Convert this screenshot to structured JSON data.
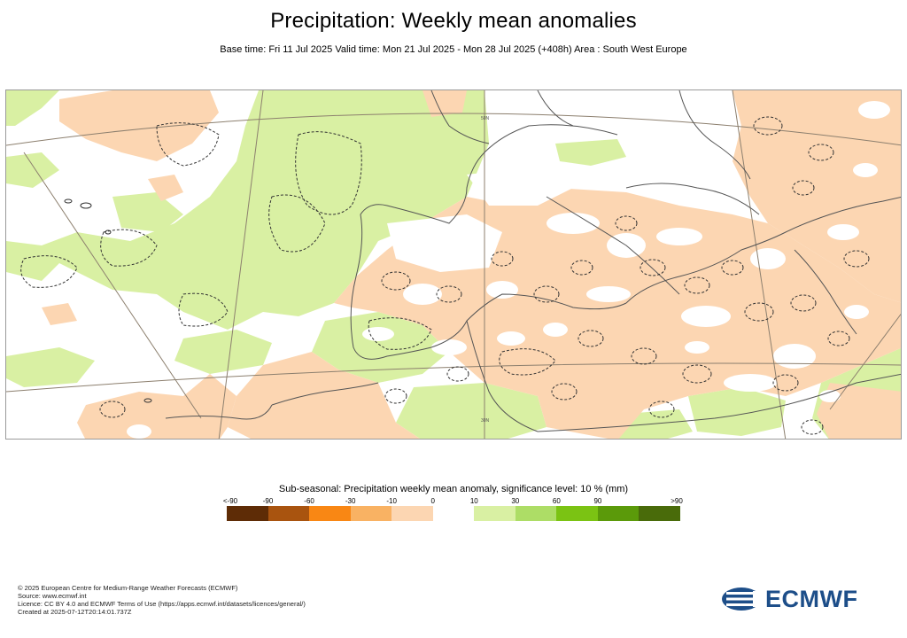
{
  "title": "Precipitation: Weekly mean anomalies",
  "subtitle": "Base time: Fri 11 Jul 2025 Valid time: Mon 21 Jul 2025 - Mon 28 Jul 2025 (+408h) Area : South West Europe",
  "map": {
    "region": "South West Europe",
    "graticule_labels": [
      "50N",
      "30N"
    ]
  },
  "legend": {
    "title": "Sub-seasonal: Precipitation weekly mean anomaly, significance level: 10 % (mm)",
    "ticks": [
      "<-90",
      "-90",
      "-60",
      "-30",
      "-10",
      "0",
      "10",
      "30",
      "60",
      "90",
      ">90"
    ],
    "colors": [
      "#5e2c06",
      "#a9540f",
      "#f98714",
      "#f9b263",
      "#fcd6b2",
      "#ffffff",
      "#d9f0a3",
      "#addd66",
      "#7bc313",
      "#5b9a0a",
      "#496b0a"
    ]
  },
  "colors": {
    "negative_light": "#fcd6b2",
    "positive_light": "#d9f0a3",
    "land_boundary": "#555555",
    "graticule": "#8c7f6e"
  },
  "footer": [
    "© 2025 European Centre for Medium-Range Weather Forecasts (ECMWF)",
    "Source: www.ecmwf.int",
    "Licence: CC BY 4.0 and ECMWF Terms of Use (https://apps.ecmwf.int/datasets/licences/general/)",
    "Created at 2025-07-12T20:14:01.737Z"
  ],
  "logo": {
    "text": "ECMWF"
  }
}
